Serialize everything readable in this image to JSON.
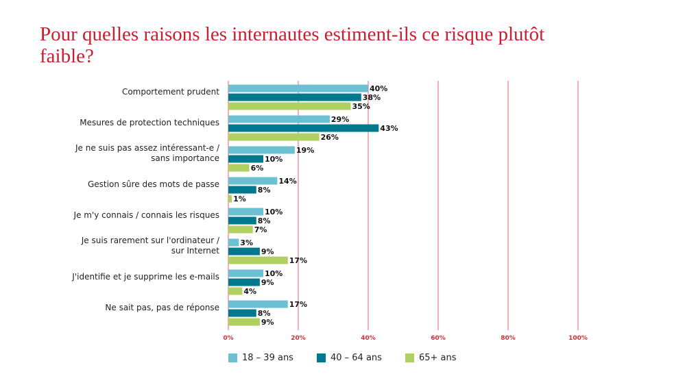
{
  "chart_data": {
    "type": "bar",
    "orientation": "horizontal",
    "title": "Pour quelles raisons les internautes estiment-ils ce risque plutôt faible?",
    "categories": [
      [
        "Comportement prudent"
      ],
      [
        "Mesures de protection techniques"
      ],
      [
        "Je ne suis pas assez intéressant-e /",
        "sans importance"
      ],
      [
        "Gestion sûre des mots de passe"
      ],
      [
        "Je m'y connais / connais les risques"
      ],
      [
        "Je suis rarement sur l'ordinateur /",
        "sur Internet"
      ],
      [
        "J'identifie et je supprime les e-mails"
      ],
      [
        "Ne sait pas, pas de réponse"
      ]
    ],
    "series": [
      {
        "name": "18 – 39 ans",
        "color": "#6cc0d3",
        "values": [
          40,
          29,
          19,
          14,
          10,
          3,
          10,
          17
        ]
      },
      {
        "name": "40 – 64 ans",
        "color": "#00798f",
        "values": [
          38,
          43,
          10,
          8,
          8,
          9,
          9,
          8
        ]
      },
      {
        "name": "65+ ans",
        "color": "#b1d062",
        "values": [
          35,
          26,
          6,
          1,
          7,
          17,
          4,
          9
        ]
      }
    ],
    "xlim": [
      0,
      100
    ],
    "xticks": [
      "0%",
      "20%",
      "40%",
      "60%",
      "80%",
      "100%"
    ],
    "value_suffix": "%",
    "grid": true,
    "grid_color": "#e0646c",
    "legend_placement": "bottom"
  }
}
